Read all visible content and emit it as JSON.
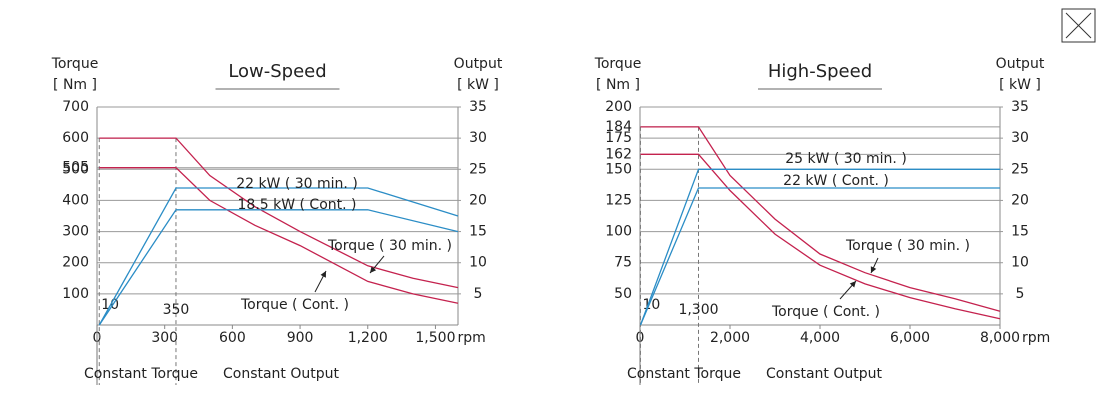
{
  "chart_data": [
    {
      "type": "line",
      "title": "Low-Speed",
      "ylabel": "Torque",
      "yunit": "[ Nm ]",
      "y2label": "Output",
      "y2unit": "[ kW ]",
      "xunit": "rpm",
      "xlim": [
        0,
        1600
      ],
      "xticks": [
        0,
        300,
        600,
        900,
        {
          "value": 1200,
          "label": "1,200"
        },
        {
          "value": 1500,
          "label": "1,500"
        }
      ],
      "ylim": [
        0,
        700
      ],
      "yticks": [
        100,
        200,
        300,
        400,
        500,
        505,
        600,
        700
      ],
      "y2lim": [
        0,
        35
      ],
      "y2ticks": [
        5,
        10,
        15,
        20,
        25,
        30,
        35
      ],
      "grid": true,
      "markers": [
        10,
        350
      ],
      "regions": [
        "Constant Torque",
        "Constant Output"
      ],
      "series": [
        {
          "name": "Torque ( 30 min. )",
          "color": "#c4224e",
          "x": [
            10,
            350,
            500,
            700,
            900,
            1200,
            1400,
            1600
          ],
          "values": [
            600,
            600,
            480,
            380,
            300,
            190,
            150,
            120
          ]
        },
        {
          "name": "Torque ( Cont. )",
          "color": "#c4224e",
          "x": [
            10,
            350,
            500,
            700,
            900,
            1200,
            1400,
            1600
          ],
          "values": [
            505,
            505,
            400,
            320,
            255,
            140,
            100,
            70
          ]
        },
        {
          "name": "22 kW ( 30 min. )",
          "color": "#2b8dc6",
          "axis": "y2",
          "x": [
            10,
            350,
            1200,
            1600
          ],
          "values": [
            0,
            22,
            22,
            17.5
          ]
        },
        {
          "name": "18.5 kW ( Cont. )",
          "color": "#2b8dc6",
          "axis": "y2",
          "x": [
            10,
            350,
            1200,
            1600
          ],
          "values": [
            0,
            18.5,
            18.5,
            15
          ]
        }
      ]
    },
    {
      "type": "line",
      "title": "High-Speed",
      "ylabel": "Torque",
      "yunit": "[ Nm ]",
      "y2label": "Output",
      "y2unit": "[ kW ]",
      "xunit": "rpm",
      "xlim": [
        0,
        8000
      ],
      "xticks": [
        0,
        {
          "value": 2000,
          "label": "2,000"
        },
        {
          "value": 4000,
          "label": "4,000"
        },
        {
          "value": 6000,
          "label": "6,000"
        },
        {
          "value": 8000,
          "label": "8,000"
        }
      ],
      "ylim": [
        25,
        200
      ],
      "yticks": [
        50,
        75,
        100,
        125,
        150,
        162,
        175,
        184,
        200
      ],
      "y2lim": [
        0,
        35
      ],
      "y2ticks": [
        5,
        10,
        15,
        20,
        25,
        30,
        35
      ],
      "grid": true,
      "markers": [
        10,
        {
          "value": 1300,
          "label": "1,300"
        }
      ],
      "regions": [
        "Constant Torque",
        "Constant Output"
      ],
      "series": [
        {
          "name": "Torque ( 30 min. )",
          "color": "#c4224e",
          "x": [
            10,
            1300,
            2000,
            3000,
            4000,
            5000,
            6000,
            7000,
            8000
          ],
          "values": [
            184,
            184,
            145,
            110,
            82,
            67,
            55,
            46,
            36
          ]
        },
        {
          "name": "Torque ( Cont. )",
          "color": "#c4224e",
          "x": [
            10,
            1300,
            2000,
            3000,
            4000,
            5000,
            6000,
            7000,
            8000
          ],
          "values": [
            162,
            162,
            133,
            98,
            73,
            58,
            47,
            38,
            30
          ]
        },
        {
          "name": "25 kW ( 30 min. )",
          "color": "#2b8dc6",
          "axis": "y2",
          "x": [
            10,
            1300,
            8000
          ],
          "values": [
            0,
            25,
            25
          ]
        },
        {
          "name": "22 kW ( Cont. )",
          "color": "#2b8dc6",
          "axis": "y2",
          "x": [
            10,
            1300,
            8000
          ],
          "values": [
            0,
            22,
            22
          ]
        }
      ]
    }
  ]
}
